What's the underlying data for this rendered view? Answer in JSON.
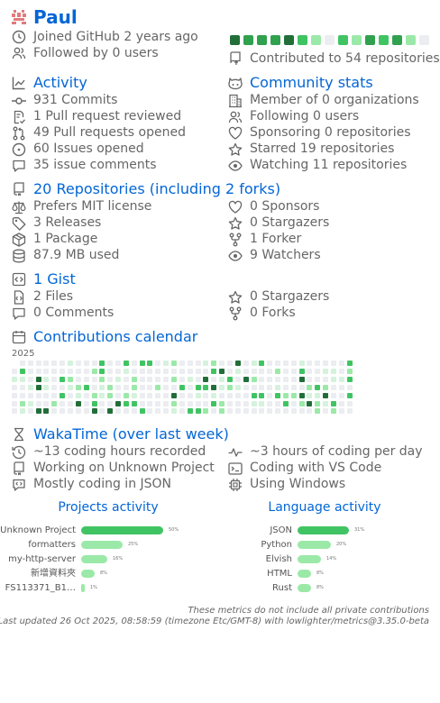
{
  "header": {
    "name": "Paul",
    "joined": "Joined GitHub 2 years ago",
    "followed": "Followed by 0 users",
    "contributed": "Contributed to 54 repositories",
    "recent_squares": [
      4,
      3,
      3,
      3,
      4,
      2,
      1,
      0,
      2,
      1,
      3,
      2,
      3,
      1,
      0
    ]
  },
  "activity": {
    "title": "Activity",
    "items": [
      "931 Commits",
      "1 Pull request reviewed",
      "49 Pull requests opened",
      "60 Issues opened",
      "35 issue comments"
    ]
  },
  "community": {
    "title": "Community stats",
    "items": [
      "Member of 0 organizations",
      "Following 0 users",
      "Sponsoring 0 repositories",
      "Starred 19 repositories",
      "Watching 11 repositories"
    ]
  },
  "repositories": {
    "title": "20 Repositories (including 2 forks)",
    "left": [
      "Prefers MIT license",
      "3 Releases",
      "1 Package",
      "87.9 MB used"
    ],
    "right": [
      "0 Sponsors",
      "0 Stargazers",
      "1 Forker",
      "9 Watchers"
    ]
  },
  "gists": {
    "title": "1 Gist",
    "left": [
      "2 Files",
      "0 Comments"
    ],
    "right": [
      "0 Stargazers",
      "0 Forks"
    ]
  },
  "calendar": {
    "title": "Contributions calendar",
    "year": "2025"
  },
  "wakatime": {
    "title": "WakaTime (over last week)",
    "left": [
      "~13 coding hours recorded",
      "Working on Unknown Project",
      "Mostly coding in JSON"
    ],
    "right": [
      "~3 hours of coding per day",
      "Coding with VS Code",
      "Using Windows"
    ]
  },
  "projects": {
    "title": "Projects activity",
    "items": [
      {
        "name": "Unknown Project",
        "percent": 50,
        "label": "50%"
      },
      {
        "name": "formatters",
        "percent": 25,
        "label": "25%"
      },
      {
        "name": "my-http-server",
        "percent": 16,
        "label": "16%"
      },
      {
        "name": "新增資料夾",
        "percent": 8,
        "label": "8%"
      },
      {
        "name": "FS113371_B1…",
        "percent": 1,
        "label": "1%"
      }
    ]
  },
  "languages": {
    "title": "Language activity",
    "items": [
      {
        "name": "JSON",
        "percent": 31,
        "label": "31%"
      },
      {
        "name": "Python",
        "percent": 20,
        "label": "20%"
      },
      {
        "name": "Elvish",
        "percent": 14,
        "label": "14%"
      },
      {
        "name": "HTML",
        "percent": 8,
        "label": "8%"
      },
      {
        "name": "Rust",
        "percent": 8,
        "label": "8%"
      }
    ]
  },
  "footer": {
    "line1": "These metrics do not include all private contributions",
    "line2": "Last updated 26 Oct 2025, 08:58:59 (timezone Etc/GMT-8) with lowlighter/metrics@3.35.0-beta"
  },
  "colors": {
    "link": "#0366d6",
    "level0": "#ebedf0",
    "level1": "#c6e48b",
    "level2": "#9be9a8",
    "level3": "#40c463",
    "level4": "#30a14e",
    "level5": "#216e39",
    "bar_strong": "#40c463",
    "bar_light": "#9be9a8"
  }
}
